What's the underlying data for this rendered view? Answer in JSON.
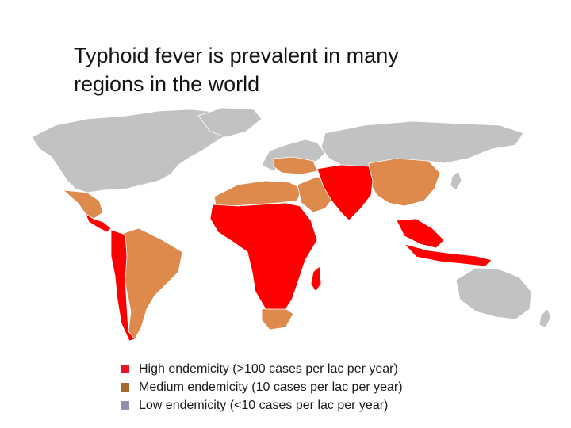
{
  "title": "Typhoid fever is prevalent in many regions in the world",
  "title_lines": [
    "Typhoid fever is prevalent in many",
    "regions in the world"
  ],
  "colors": {
    "high": "#ff0000",
    "medium": "#df8a4d",
    "low": "#c2c2c2",
    "border": "#ffffff"
  },
  "legend": [
    {
      "level": "high",
      "label": "High endemicity (>100 cases per lac per year)",
      "swatch_color": "#e8132a"
    },
    {
      "level": "medium",
      "label": "Medium endemicity (10 cases per lac per year)",
      "swatch_color": "#a86a2c"
    },
    {
      "level": "low",
      "label": "Low endemicity (<10 cases per lac per year)",
      "swatch_color": "#8f8fb0"
    }
  ]
}
